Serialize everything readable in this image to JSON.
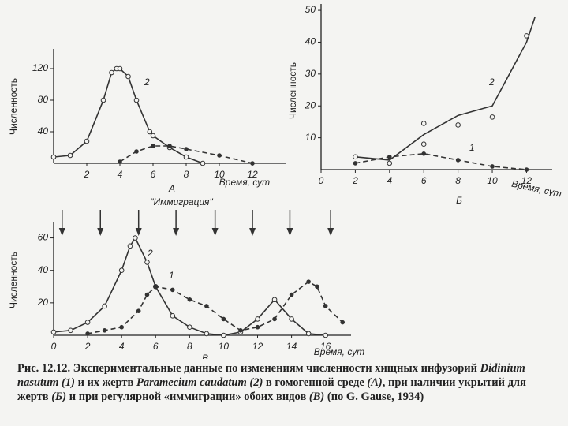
{
  "chart_data": [
    {
      "type": "line",
      "ylabel": "Численность",
      "xlabel": "Время, сут",
      "panel": "A",
      "xlim": [
        0,
        14
      ],
      "ylim": [
        0,
        145
      ],
      "xticks": [
        2,
        4,
        6,
        8,
        10,
        12
      ],
      "yticks": [
        40,
        80,
        120
      ],
      "series": [
        {
          "name": "2",
          "color": "#333333",
          "dash": false,
          "marker": "open",
          "x": [
            0,
            1,
            2,
            3,
            3.5,
            3.8,
            4,
            4.5,
            5,
            5.8,
            6,
            7,
            8,
            9
          ],
          "values": [
            8,
            10,
            28,
            80,
            115,
            120,
            120,
            110,
            80,
            40,
            35,
            20,
            8,
            0
          ]
        },
        {
          "name": "1",
          "color": "#333333",
          "dash": true,
          "marker": "filled",
          "x": [
            4,
            5,
            6,
            7,
            8,
            10,
            12
          ],
          "values": [
            2,
            15,
            22,
            22,
            18,
            10,
            0
          ]
        }
      ]
    },
    {
      "type": "line",
      "ylabel": "Численность",
      "xlabel": "Время, сут",
      "panel": "Б",
      "xlim": [
        0,
        13.5
      ],
      "ylim": [
        0,
        52
      ],
      "xticks": [
        0,
        2,
        4,
        6,
        8,
        10,
        12
      ],
      "yticks": [
        10,
        20,
        30,
        40,
        50
      ],
      "series": [
        {
          "name": "2",
          "color": "#333333",
          "dash": false,
          "marker": "none",
          "x": [
            2,
            4,
            6,
            8,
            10,
            11,
            12,
            12.5
          ],
          "values": [
            4,
            3,
            11,
            17,
            20,
            30,
            40,
            48
          ]
        },
        {
          "color": "#333333",
          "dash": false,
          "marker": "open",
          "line": false,
          "x": [
            2,
            4,
            6,
            6,
            8,
            10,
            12
          ],
          "values": [
            4,
            2,
            14.5,
            8,
            14,
            16.5,
            42
          ]
        },
        {
          "name": "1",
          "color": "#333333",
          "dash": true,
          "marker": "filled",
          "x": [
            2,
            4,
            6,
            8,
            10,
            12
          ],
          "values": [
            2,
            4,
            5,
            3,
            1,
            0
          ]
        }
      ]
    },
    {
      "type": "line",
      "ylabel": "Численность",
      "xlabel": "Время, сут",
      "panel": "В",
      "annotation": "\"Иммиграция\"",
      "immigration_x": [
        0.5,
        2.75,
        5,
        7.2,
        9.5,
        11.7,
        13.9,
        16.3
      ],
      "xlim": [
        0,
        17.5
      ],
      "ylim": [
        0,
        70
      ],
      "xticks": [
        0,
        2,
        4,
        6,
        8,
        10,
        12,
        14,
        16
      ],
      "yticks": [
        20,
        40,
        60
      ],
      "series": [
        {
          "name": "2",
          "color": "#333333",
          "dash": false,
          "marker": "open",
          "x": [
            0,
            1,
            2,
            3,
            4,
            4.5,
            4.8,
            5.5,
            6,
            7,
            8,
            9,
            10,
            11,
            12,
            13,
            14,
            15,
            16
          ],
          "values": [
            2,
            3,
            8,
            18,
            40,
            55,
            60,
            45,
            30,
            12,
            5,
            1,
            0,
            2,
            10,
            22,
            10,
            1,
            0
          ]
        },
        {
          "name": "1",
          "color": "#333333",
          "dash": true,
          "marker": "filled",
          "x": [
            2,
            3,
            4,
            5,
            5.5,
            6,
            7,
            8,
            9,
            10,
            11,
            12,
            13,
            14,
            15,
            15.5,
            16,
            17
          ],
          "values": [
            1,
            3,
            5,
            15,
            25,
            30,
            28,
            22,
            18,
            10,
            3,
            5,
            10,
            25,
            33,
            30,
            18,
            8
          ]
        }
      ]
    }
  ],
  "caption": [
    "Рис. 12.12. Экспериментальные данные по изменениям численности хищных инфузорий ",
    "Didinium nasutum (1)",
    " и их жертв ",
    "Paramecium caudatum (2)",
    " в гомогенной среде ",
    "(А)",
    ", при наличии укрытий для жертв ",
    "(Б)",
    " и при регулярной «иммиграции» обоих видов ",
    "(В)",
    " (по G. Gause, 1934)"
  ]
}
